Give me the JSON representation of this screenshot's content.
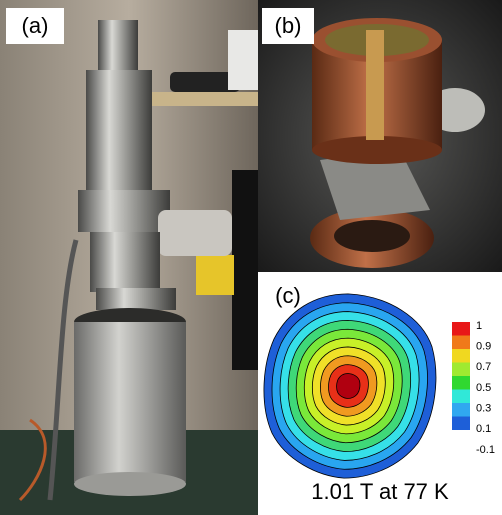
{
  "panels": [
    {
      "label": "(a)"
    },
    {
      "label": "(b)"
    },
    {
      "label": "(c)"
    }
  ],
  "colorbar": {
    "ticks": [
      "1",
      "0.9",
      "0.7",
      "0.5",
      "0.3",
      "0.1",
      "-0.1"
    ]
  },
  "caption": "1.01 T at 77 K"
}
